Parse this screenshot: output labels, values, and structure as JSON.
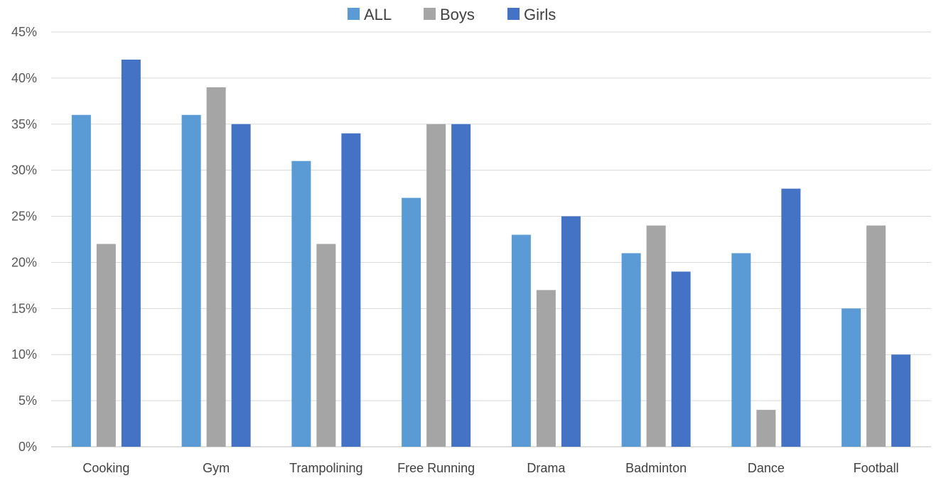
{
  "chart_data": {
    "type": "bar",
    "categories": [
      "Cooking",
      "Gym",
      "Trampolining",
      "Free Running",
      "Drama",
      "Badminton",
      "Dance",
      "Football"
    ],
    "series": [
      {
        "name": "ALL",
        "color": "#5b9bd5",
        "values": [
          36,
          36,
          31,
          27,
          23,
          21,
          21,
          15
        ]
      },
      {
        "name": "Boys",
        "color": "#a5a5a5",
        "values": [
          22,
          39,
          22,
          35,
          17,
          24,
          4,
          24
        ]
      },
      {
        "name": "Girls",
        "color": "#4472c4",
        "values": [
          42,
          35,
          34,
          35,
          25,
          19,
          28,
          10
        ]
      }
    ],
    "ylim": [
      0,
      45
    ],
    "yticks": [
      "0%",
      "5%",
      "10%",
      "15%",
      "20%",
      "25%",
      "30%",
      "35%",
      "40%",
      "45%"
    ],
    "grid": true,
    "legend": "top-center"
  }
}
